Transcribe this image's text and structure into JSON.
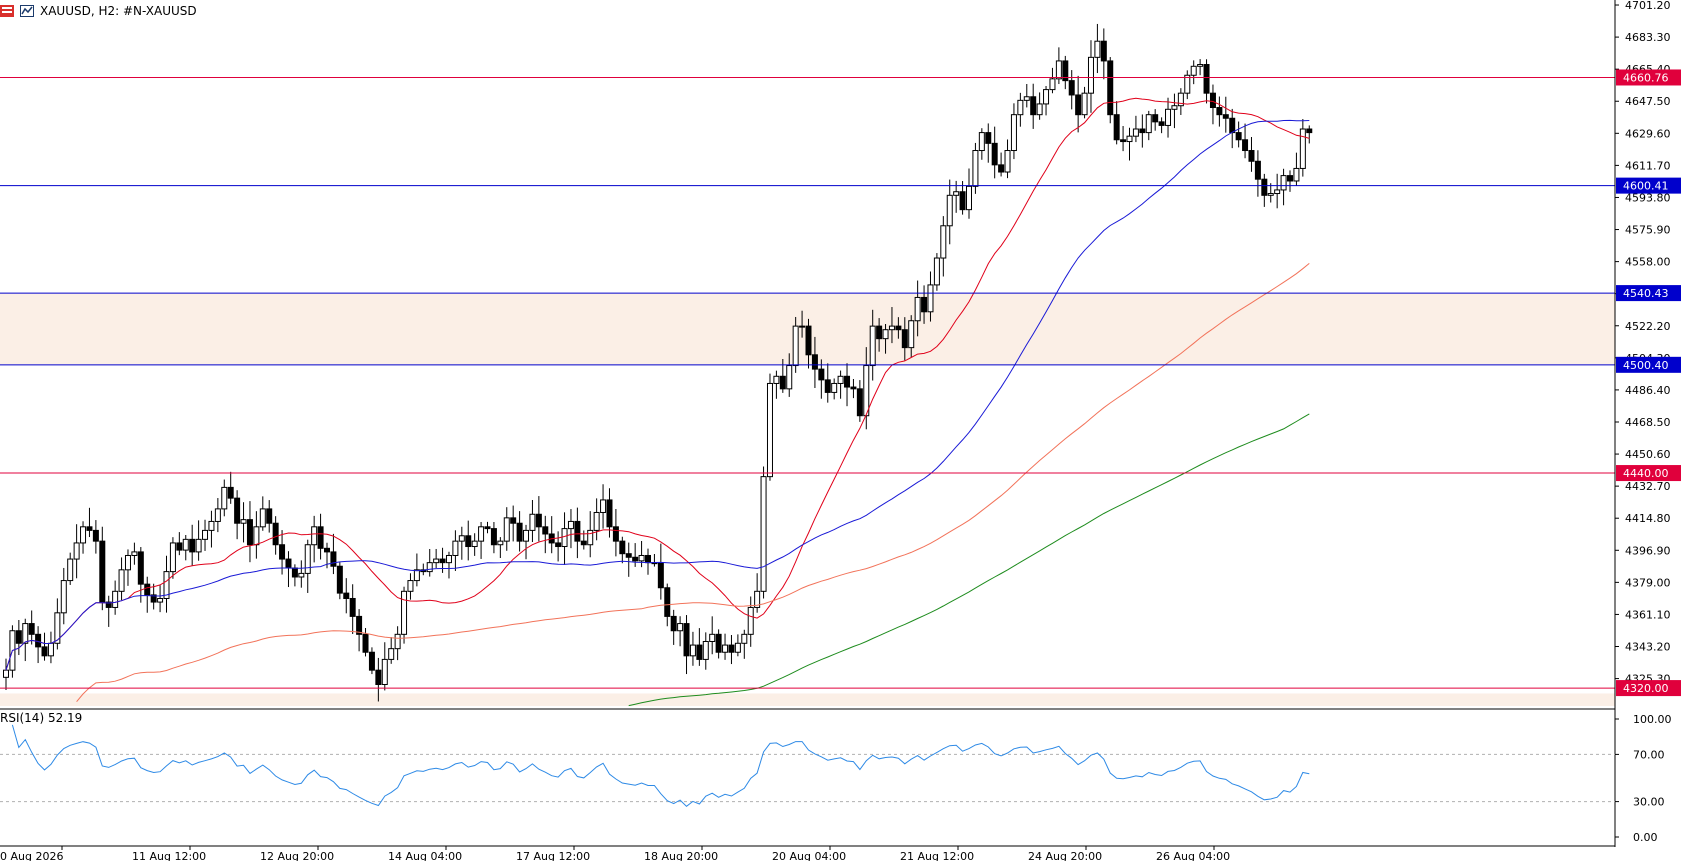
{
  "header": {
    "symbol_label": "XAUUSD, H2:  #N-XAUUSD"
  },
  "rsi_panel": {
    "label": "RSI(14) 52.19",
    "levels": [
      70,
      30
    ],
    "axis_ticks": [
      "100.00",
      "70.00",
      "30.00",
      "0.00"
    ]
  },
  "price_axis": {
    "ticks": [
      "4701.20",
      "4683.30",
      "4665.40",
      "4647.50",
      "4629.60",
      "4611.70",
      "4593.80",
      "4575.90",
      "4558.00",
      "4540.10",
      "4522.20",
      "4504.30",
      "4486.40",
      "4468.50",
      "4450.60",
      "4432.70",
      "4414.80",
      "4396.90",
      "4379.00",
      "4361.10",
      "4343.20",
      "4325.30"
    ]
  },
  "time_axis": {
    "labels": [
      "0 Aug 2026",
      "11 Aug 12:00",
      "12 Aug 20:00",
      "14 Aug 04:00",
      "17 Aug 12:00",
      "18 Aug 20:00",
      "20 Aug 04:00",
      "21 Aug 12:00",
      "24 Aug 20:00",
      "26 Aug 04:00"
    ]
  },
  "chart_data": {
    "type": "candlestick",
    "symbol": "XAUUSD",
    "timeframe": "H2",
    "ylim": [
      4310,
      4704
    ],
    "horizontal_levels": [
      {
        "value": 4660.76,
        "label": "4660.76",
        "color": "#e0003c"
      },
      {
        "value": 4600.41,
        "label": "4600.41",
        "color": "#0000cc"
      },
      {
        "value": 4540.43,
        "label": "4540.43",
        "color": "#0000cc"
      },
      {
        "value": 4500.4,
        "label": "4500.40",
        "color": "#0000cc"
      },
      {
        "value": 4440.0,
        "label": "4440.00",
        "color": "#e0003c"
      },
      {
        "value": 4320.0,
        "label": "4320.00",
        "color": "#e0003c"
      }
    ],
    "zones": [
      {
        "from": 4500.4,
        "to": 4540.43,
        "color": "#fbefe6"
      },
      {
        "from": 4310,
        "to": 4317,
        "color": "#fbefe6"
      }
    ],
    "close_series": [
      4330,
      4352,
      4345,
      4356,
      4350,
      4343,
      4338,
      4345,
      4362,
      4380,
      4392,
      4401,
      4410,
      4408,
      4402,
      4368,
      4365,
      4374,
      4386,
      4394,
      4396,
      4378,
      4372,
      4368,
      4370,
      4385,
      4401,
      4397,
      4403,
      4396,
      4403,
      4408,
      4413,
      4420,
      4432,
      4426,
      4412,
      4414,
      4400,
      4410,
      4420,
      4412,
      4400,
      4392,
      4387,
      4382,
      4384,
      4400,
      4410,
      4398,
      4396,
      4388,
      4373,
      4370,
      4360,
      4350,
      4340,
      4330,
      4322,
      4336,
      4342,
      4350,
      4374,
      4380,
      4386,
      4385,
      4390,
      4392,
      4390,
      4394,
      4402,
      4405,
      4399,
      4402,
      4410,
      4409,
      4400,
      4402,
      4415,
      4412,
      4402,
      4408,
      4417,
      4410,
      4406,
      4401,
      4399,
      4409,
      4413,
      4402,
      4400,
      4408,
      4418,
      4425,
      4410,
      4402,
      4395,
      4393,
      4391,
      4394,
      4390,
      4390,
      4376,
      4360,
      4352,
      4356,
      4338,
      4344,
      4336,
      4346,
      4350,
      4340,
      4344,
      4340,
      4345,
      4350,
      4365,
      4374,
      4438,
      4490,
      4494,
      4487,
      4500,
      4522,
      4522,
      4506,
      4498,
      4492,
      4485,
      4490,
      4494,
      4488,
      4487,
      4472,
      4500,
      4522,
      4515,
      4520,
      4522,
      4520,
      4510,
      4525,
      4538,
      4530,
      4545,
      4560,
      4578,
      4595,
      4597,
      4587,
      4600,
      4620,
      4630,
      4624,
      4612,
      4608,
      4620,
      4640,
      4648,
      4650,
      4640,
      4646,
      4654,
      4660,
      4670,
      4659,
      4651,
      4640,
      4652,
      4672,
      4681,
      4670,
      4640,
      4626,
      4625,
      4628,
      4632,
      4630,
      4640,
      4636,
      4634,
      4643,
      4645,
      4652,
      4662,
      4667,
      4668,
      4652,
      4644,
      4640,
      4638,
      4630,
      4626,
      4620,
      4614,
      4604,
      4595,
      4596,
      4598,
      4606,
      4603,
      4610,
      4632,
      4630
    ],
    "moving_averages": [
      {
        "period": 20,
        "type": "MA",
        "color": "#e0001a"
      },
      {
        "period": 50,
        "type": "MA",
        "color": "#1a1ad6"
      },
      {
        "period": 100,
        "type": "MA",
        "color": "#f2735a"
      },
      {
        "period": 200,
        "type": "MA",
        "color": "#1e8c1e"
      }
    ],
    "rsi": {
      "period": 14,
      "last": 52.19,
      "color": "#2e8ae6"
    }
  }
}
